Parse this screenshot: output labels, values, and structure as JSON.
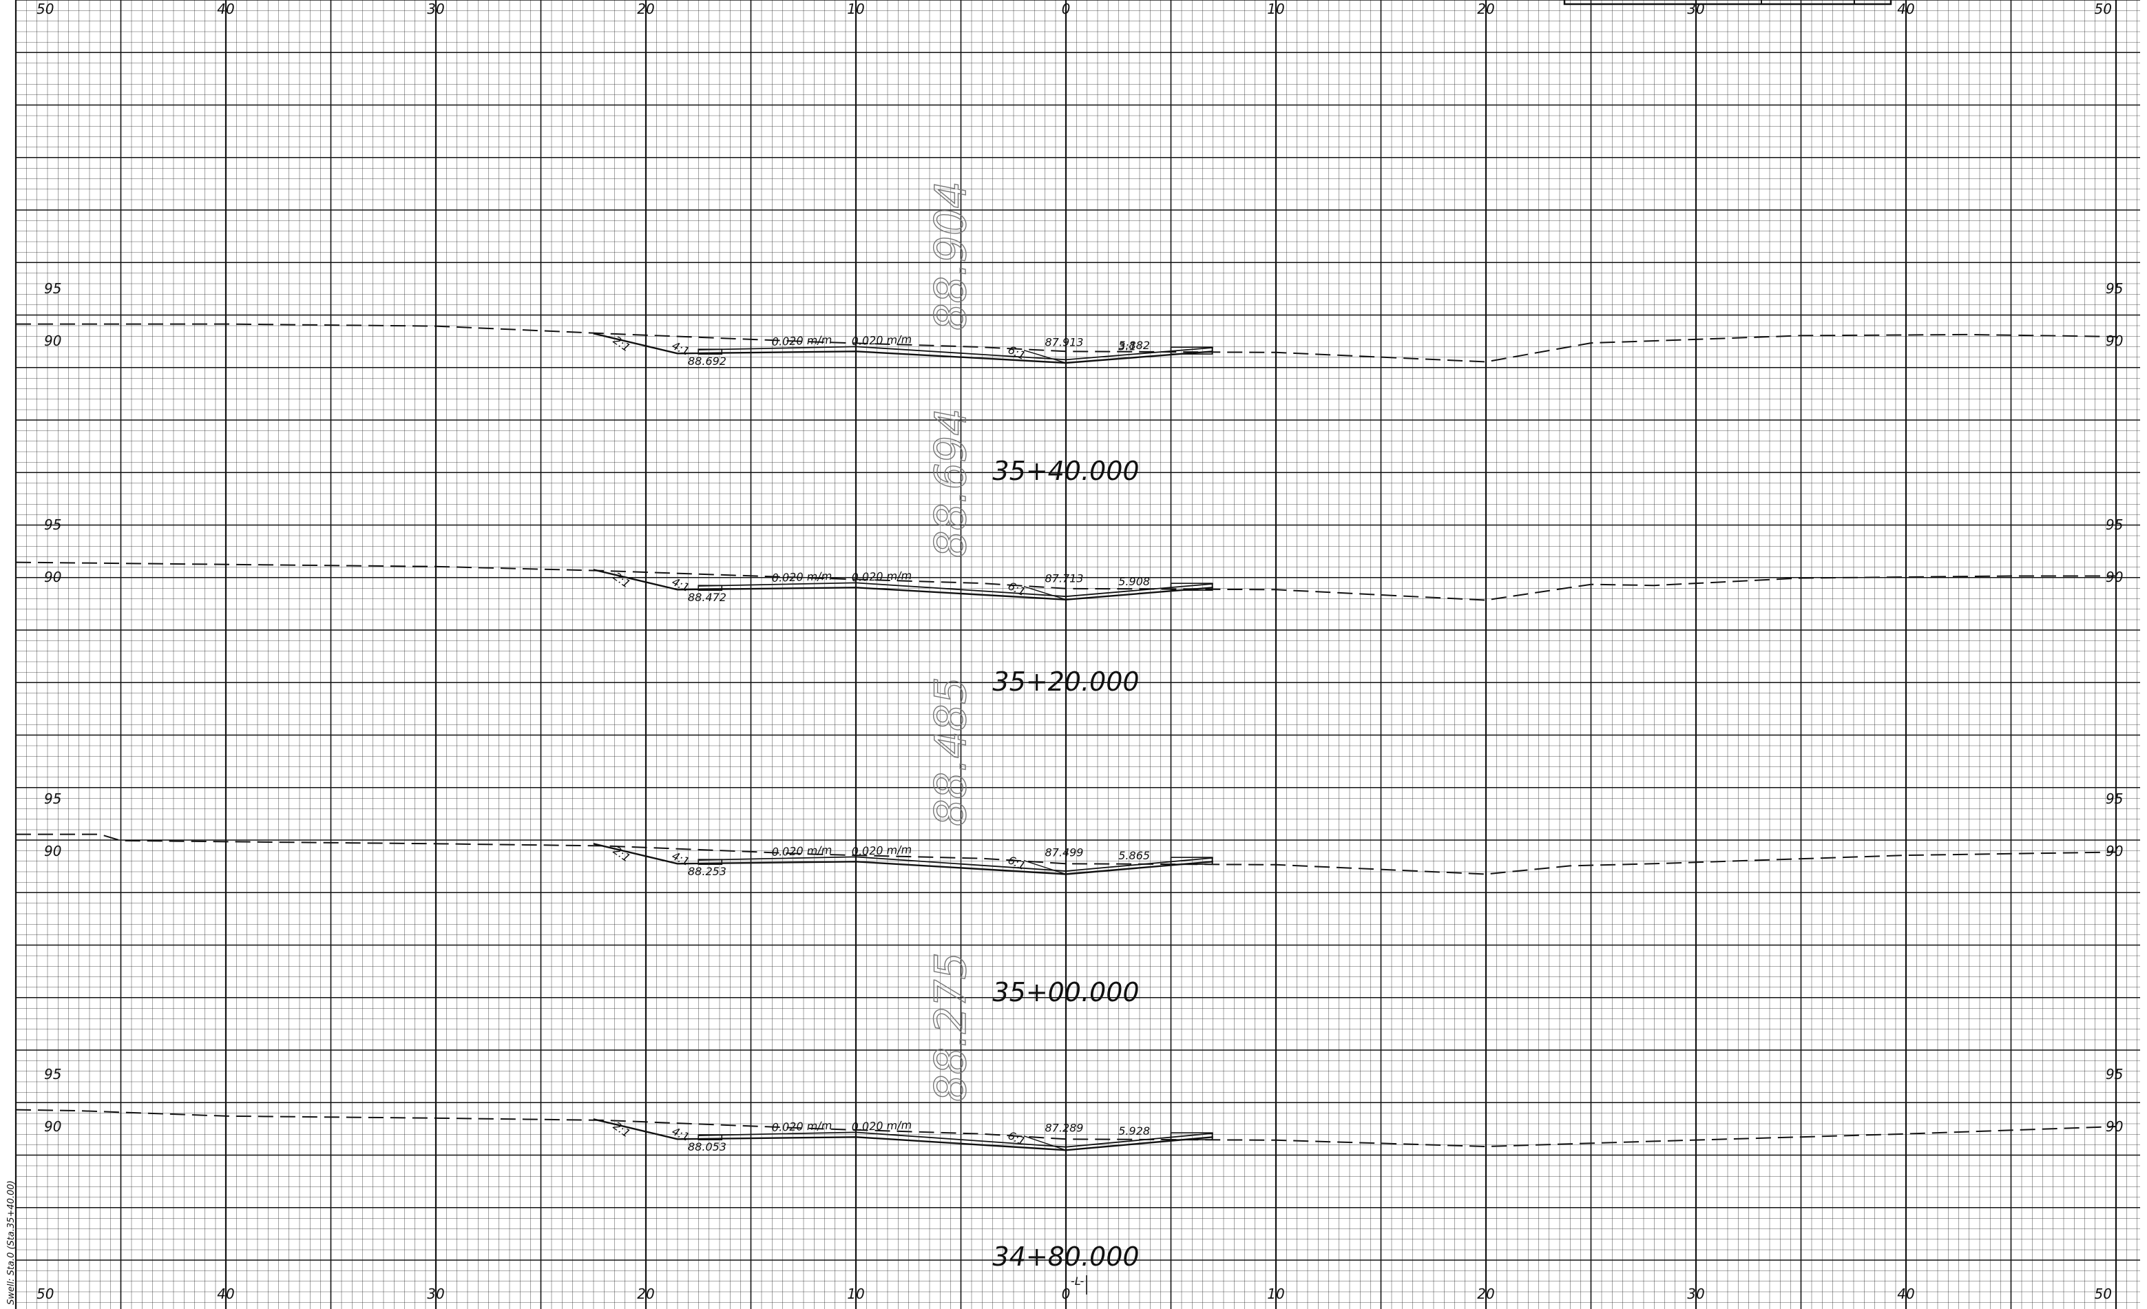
{
  "sheet": {
    "offset_ticks": [
      "50",
      "40",
      "30",
      "20",
      "10",
      "0",
      "10",
      "20",
      "30",
      "40",
      "50"
    ],
    "centerline_mark": "-L-",
    "margin_note": "Swell: Sta.0 (Sta.35+40.00)"
  },
  "sections": [
    {
      "station": "35+40.000",
      "finished_grade": "88.904",
      "elev_upper": "95",
      "elev_lower": "90",
      "left_ditch_elev": "88.692",
      "centerline_elev": "87.913",
      "lane_slope_1": "0.020 m/m",
      "lane_slope_2": "0.020 m/m",
      "right_width": "5.882",
      "slope_outer": "2:1",
      "slope_inner": "4:1",
      "slope_right": "6:1",
      "slope_right_2": "3:1"
    },
    {
      "station": "35+20.000",
      "finished_grade": "88.694",
      "elev_upper": "95",
      "elev_lower": "90",
      "left_ditch_elev": "88.472",
      "centerline_elev": "87.713",
      "lane_slope_1": "0.020 m/m",
      "lane_slope_2": "0.020 m/m",
      "right_width": "5.908",
      "slope_outer": "2:1",
      "slope_inner": "4:1",
      "slope_right": "6:1",
      "slope_right_2": ""
    },
    {
      "station": "35+00.000",
      "finished_grade": "88.485",
      "elev_upper": "95",
      "elev_lower": "90",
      "left_ditch_elev": "88.253",
      "centerline_elev": "87.499",
      "lane_slope_1": "0.020 m/m",
      "lane_slope_2": "0.020 m/m",
      "right_width": "5.865",
      "slope_outer": "2:1",
      "slope_inner": "4:1",
      "slope_right": "6:1",
      "slope_right_2": ""
    },
    {
      "station": "34+80.000",
      "finished_grade": "88.275",
      "elev_upper": "95",
      "elev_lower": "90",
      "left_ditch_elev": "88.053",
      "centerline_elev": "87.289",
      "lane_slope_1": "0.020 m/m",
      "lane_slope_2": "0.020 m/m",
      "right_width": "5.928",
      "slope_outer": "2:1",
      "slope_inner": "4:1",
      "slope_right": "6:1",
      "slope_right_2": ""
    }
  ],
  "colors": {
    "paper": "#ffffff",
    "grid": "#1a1a1a",
    "ink": "#111111",
    "ghost_text": "#777777"
  }
}
